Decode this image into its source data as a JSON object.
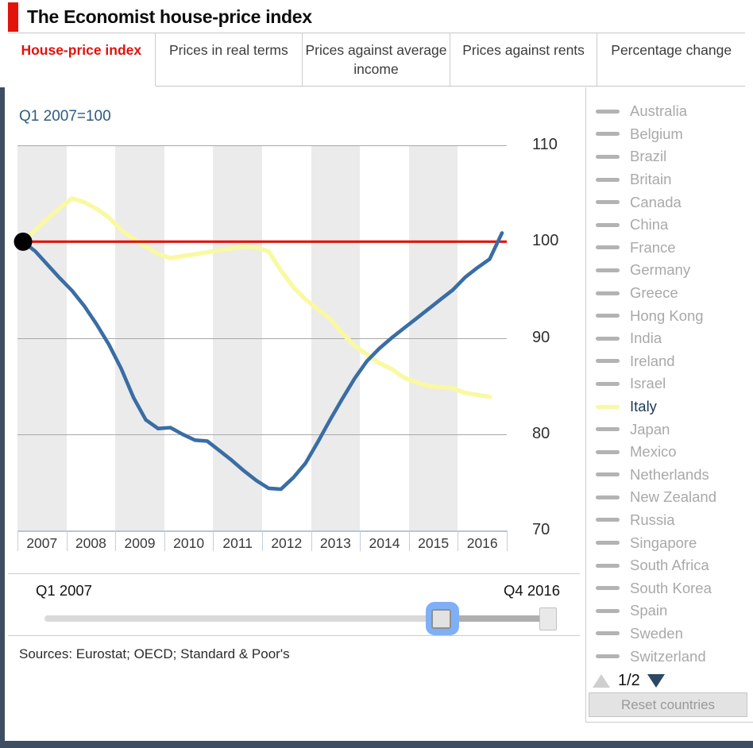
{
  "header": {
    "title": "The Economist house-price index"
  },
  "tabs": [
    {
      "label": "House-price index",
      "active": true
    },
    {
      "label": "Prices in real terms",
      "active": false
    },
    {
      "label": "Prices against average income",
      "active": false
    },
    {
      "label": "Prices against rents",
      "active": false
    },
    {
      "label": "Percentage change",
      "active": false
    }
  ],
  "chart_data": {
    "type": "line",
    "title": "Q1 2007=100",
    "x_unit": "quarter",
    "x_start": "Q1 2007",
    "x_end": "Q4 2016",
    "x_tick_labels": [
      "2007",
      "2008",
      "2009",
      "2010",
      "2011",
      "2012",
      "2013",
      "2014",
      "2015",
      "2016"
    ],
    "ylim": [
      70,
      110
    ],
    "y_ticks": [
      110,
      100,
      90,
      80,
      70
    ],
    "grid": "horizontal",
    "baseline": {
      "value": 100,
      "color": "#e3120b"
    },
    "start_marker": {
      "x": "Q1 2007",
      "value": 100,
      "color": "#000000"
    },
    "series": [
      {
        "id": "blue-series",
        "label": null,
        "note": "highlighted country, name not visible on this legend page",
        "color": "#3a6da4",
        "values": [
          100,
          99.0,
          97.6,
          96.2,
          94.9,
          93.3,
          91.4,
          89.3,
          86.8,
          83.8,
          81.5,
          80.6,
          80.7,
          80.0,
          79.4,
          79.3,
          78.3,
          77.3,
          76.2,
          75.2,
          74.4,
          74.3,
          75.5,
          77.0,
          79.2,
          81.5,
          83.7,
          85.8,
          87.6,
          88.9,
          90.0,
          91.0,
          92.0,
          93.0,
          94.0,
          95.0,
          96.3,
          97.3,
          98.2,
          100.9
        ]
      },
      {
        "id": "italy-series",
        "label": "Italy",
        "color": "#f9f9a3",
        "values": [
          100,
          101.2,
          102.4,
          103.5,
          104.5,
          104.1,
          103.4,
          102.5,
          101.2,
          100.3,
          99.5,
          98.7,
          98.3,
          98.5,
          98.7,
          98.9,
          99.1,
          99.3,
          99.5,
          99.4,
          99.0,
          97.0,
          95.3,
          94.0,
          93.0,
          92.0,
          90.5,
          89.2,
          88.3,
          87.4,
          86.8,
          85.9,
          85.4,
          85.0,
          84.9,
          84.8,
          84.3,
          84.1,
          83.9,
          null
        ]
      }
    ]
  },
  "legend": {
    "items": [
      {
        "label": "Australia",
        "selected": false
      },
      {
        "label": "Belgium",
        "selected": false
      },
      {
        "label": "Brazil",
        "selected": false
      },
      {
        "label": "Britain",
        "selected": false
      },
      {
        "label": "Canada",
        "selected": false
      },
      {
        "label": "China",
        "selected": false
      },
      {
        "label": "France",
        "selected": false
      },
      {
        "label": "Germany",
        "selected": false
      },
      {
        "label": "Greece",
        "selected": false
      },
      {
        "label": "Hong Kong",
        "selected": false
      },
      {
        "label": "India",
        "selected": false
      },
      {
        "label": "Ireland",
        "selected": false
      },
      {
        "label": "Israel",
        "selected": false
      },
      {
        "label": "Italy",
        "selected": true
      },
      {
        "label": "Japan",
        "selected": false
      },
      {
        "label": "Mexico",
        "selected": false
      },
      {
        "label": "Netherlands",
        "selected": false
      },
      {
        "label": "New Zealand",
        "selected": false
      },
      {
        "label": "Russia",
        "selected": false
      },
      {
        "label": "Singapore",
        "selected": false
      },
      {
        "label": "South Africa",
        "selected": false
      },
      {
        "label": "South Korea",
        "selected": false
      },
      {
        "label": "Spain",
        "selected": false
      },
      {
        "label": "Sweden",
        "selected": false
      },
      {
        "label": "Switzerland",
        "selected": false
      }
    ],
    "page_label": "1/2",
    "reset_label": "Reset countries"
  },
  "slider": {
    "min_label": "Q1 2007",
    "max_label": "Q4 2016",
    "handle_positions_pct": [
      77.8,
      98.4
    ],
    "active_handle": 0
  },
  "sources": "Sources: Eurostat; OECD; Standard & Poor's",
  "colors": {
    "economist_red": "#e3120b",
    "navy_accent": "#3d4e63",
    "band_gray": "#ebebeb",
    "gridline": "#a8a8a8",
    "axis_blue": "#b8c5da",
    "legend_gray": "#a9a9a9",
    "slider_focus_blue": "#7fb0f6"
  }
}
